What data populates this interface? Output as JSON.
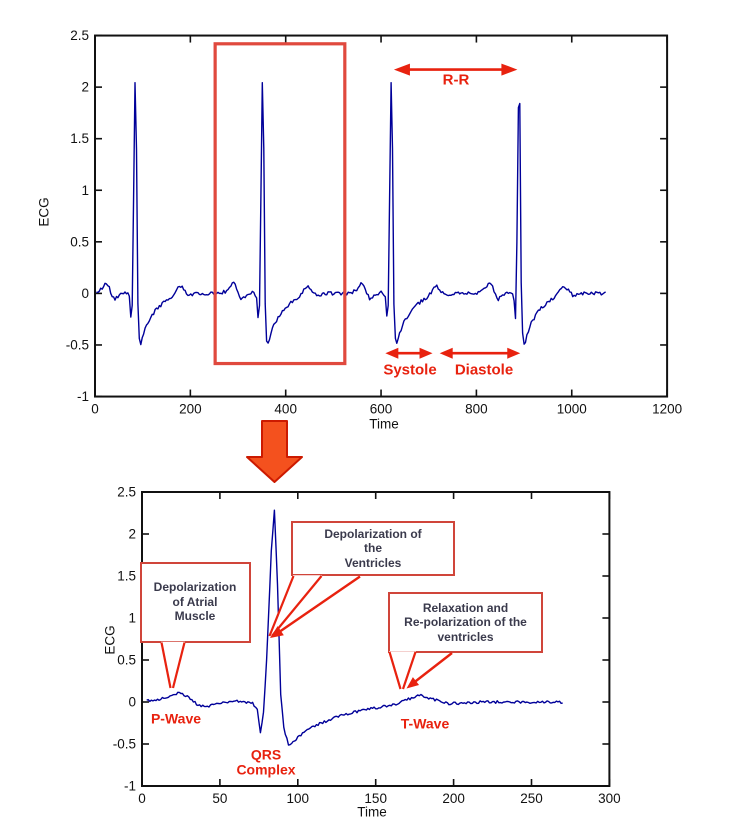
{
  "figure": {
    "background": "#ffffff",
    "colors": {
      "waveform": "#000099",
      "annotation_red": "#e8220f",
      "zoom_rect_red": "#e0493e",
      "callout_border_red": "#d0453a",
      "callout_text": "#3a3a4c",
      "down_arrow_fill": "#f4511e",
      "down_arrow_stroke": "#cc1a00",
      "axis": "#111111"
    }
  },
  "chart_data": [
    {
      "id": "full-ecg",
      "type": "line",
      "title": "",
      "xlabel": "Time",
      "ylabel": "ECG",
      "xlim": [
        0,
        1200
      ],
      "ylim": [
        -1,
        2.5
      ],
      "xticks": [
        0,
        200,
        400,
        600,
        800,
        1000,
        1200
      ],
      "yticks": [
        -1,
        -0.5,
        0,
        0.5,
        1,
        1.5,
        2,
        2.5
      ],
      "grid": false,
      "legend": "none",
      "line_color": "#000099",
      "r_peak_x": [
        85,
        352,
        622,
        890
      ],
      "r_peak_value": 2.28,
      "s_trough_value": -0.52,
      "p_wave_value": 0.11,
      "t_wave_value": 0.08,
      "signal_x_range": [
        3,
        1073
      ],
      "annotations": {
        "zoom_rect": {
          "x1": 252,
          "x2": 524,
          "y1": -0.68,
          "y2": 2.42
        },
        "rr": {
          "label": "R-R",
          "x1": 627,
          "x2": 886,
          "y": 2.17
        },
        "systole": {
          "label": "Systole",
          "x1": 609,
          "x2": 708,
          "y": -0.58
        },
        "diastole": {
          "label": "Diastole",
          "x1": 723,
          "x2": 892,
          "y": -0.58
        }
      }
    },
    {
      "id": "single-beat",
      "type": "line",
      "title": "",
      "xlabel": "Time",
      "ylabel": "ECG",
      "xlim": [
        0,
        300
      ],
      "ylim": [
        -1,
        2.5
      ],
      "xticks": [
        0,
        50,
        100,
        150,
        200,
        250,
        300
      ],
      "yticks": [
        -1,
        -0.5,
        0,
        0.5,
        1,
        1.5,
        2,
        2.5
      ],
      "grid": false,
      "legend": "none",
      "line_color": "#000099",
      "r_peak_x": [
        85
      ],
      "r_peak_value": 2.28,
      "q_trough": {
        "x": 75,
        "value": -0.36
      },
      "s_trough": {
        "x": 94,
        "value": -0.52
      },
      "p_wave": {
        "x": 22,
        "value": 0.11
      },
      "t_wave": {
        "x": 178,
        "value": 0.08
      },
      "signal_x_range": [
        3,
        270
      ],
      "wave_labels": [
        {
          "label": "P-Wave"
        },
        {
          "label": "QRS\nComplex"
        },
        {
          "label": "T-Wave"
        }
      ],
      "callouts": [
        {
          "text": "Depolarization\nof Atrial\nMuscle"
        },
        {
          "text": "Depolarization of\nthe\nVentricles"
        },
        {
          "text": "Relaxation and\nRe-polarization of the\nventricles"
        }
      ]
    }
  ],
  "beat_template": {
    "keypoints": [
      [
        -90,
        0
      ],
      [
        -78,
        0.02
      ],
      [
        -70,
        0.05
      ],
      [
        -62,
        0.11
      ],
      [
        -56,
        0.07
      ],
      [
        -50,
        -0.02
      ],
      [
        -44,
        -0.06
      ],
      [
        -38,
        -0.03
      ],
      [
        -30,
        0
      ],
      [
        -20,
        0.01
      ],
      [
        -14,
        -0.02
      ],
      [
        -11,
        -0.08
      ],
      [
        -9,
        -0.36
      ],
      [
        -7,
        -0.12
      ],
      [
        -5,
        0.5
      ],
      [
        -2,
        1.8
      ],
      [
        0,
        2.28
      ],
      [
        2,
        1.4
      ],
      [
        4,
        0.1
      ],
      [
        6,
        -0.3
      ],
      [
        9,
        -0.52
      ],
      [
        13,
        -0.46
      ],
      [
        18,
        -0.37
      ],
      [
        25,
        -0.29
      ],
      [
        34,
        -0.22
      ],
      [
        44,
        -0.15
      ],
      [
        54,
        -0.11
      ],
      [
        64,
        -0.07
      ],
      [
        72,
        -0.05
      ],
      [
        80,
        -0.01
      ],
      [
        87,
        0.04
      ],
      [
        93,
        0.08
      ],
      [
        99,
        0.05
      ],
      [
        106,
        0.01
      ],
      [
        112,
        -0.02
      ],
      [
        120,
        -0.01
      ],
      [
        132,
        0
      ]
    ],
    "noise_amp": 0.016
  }
}
